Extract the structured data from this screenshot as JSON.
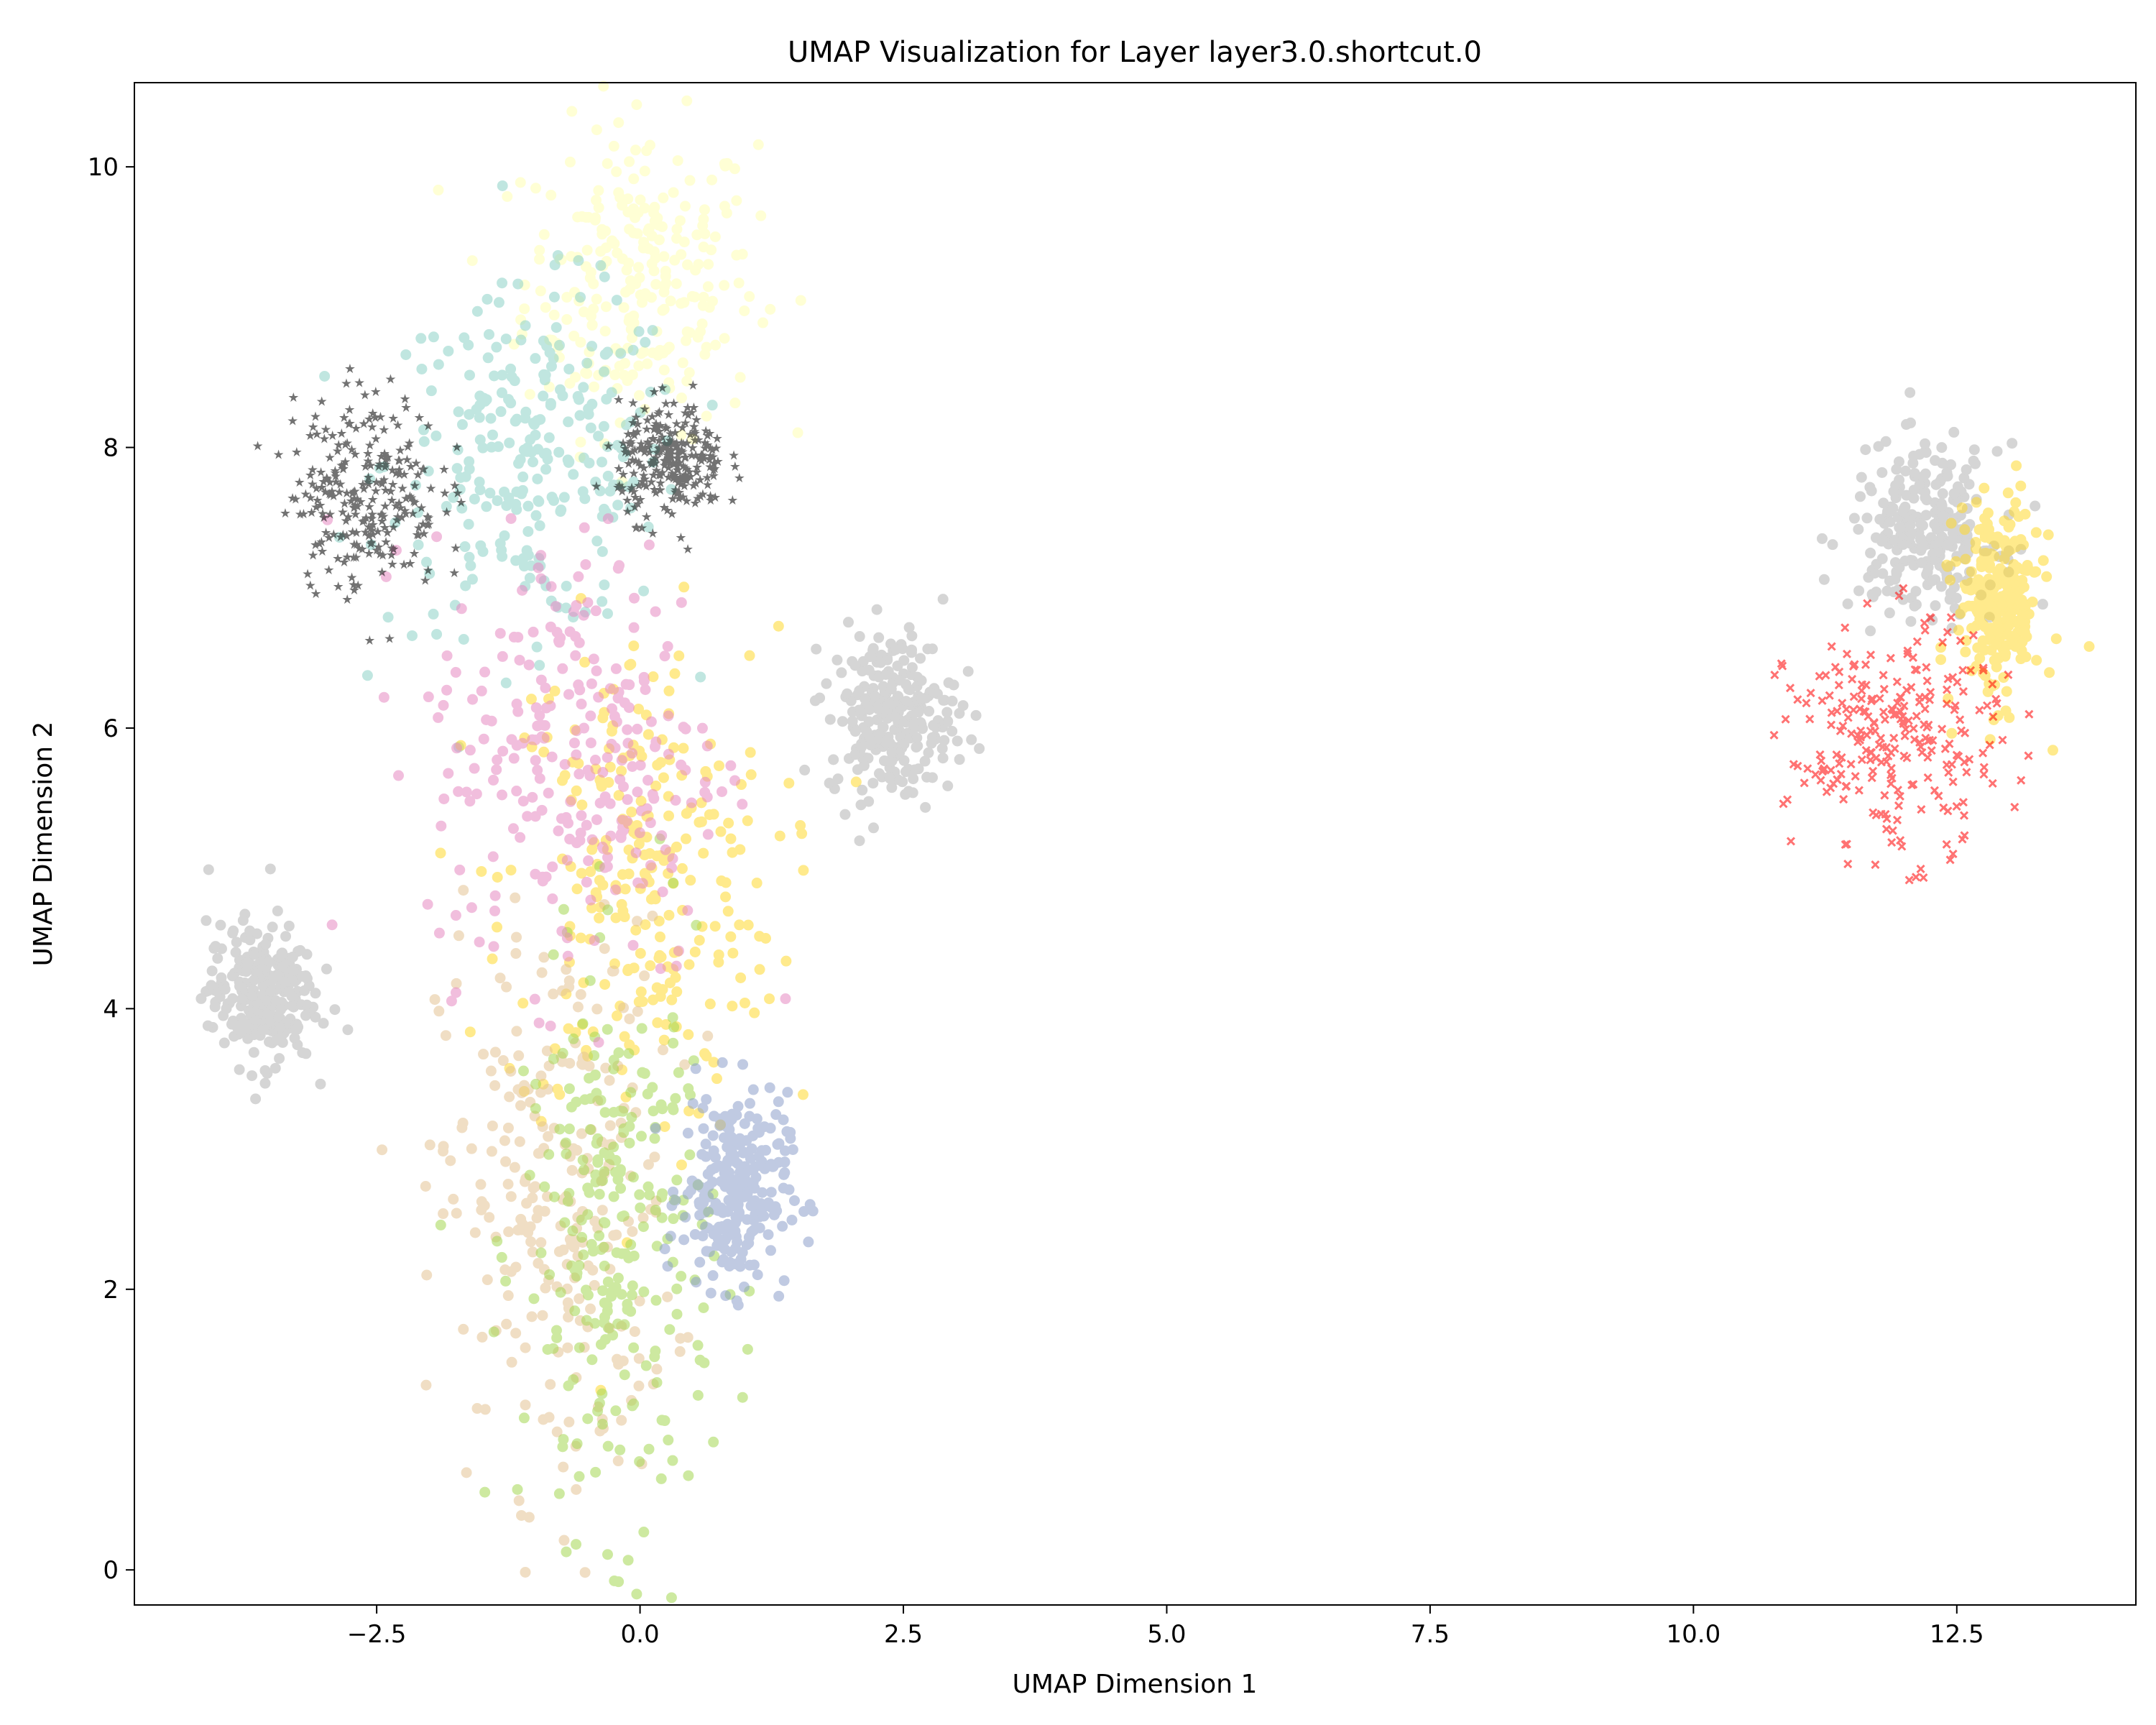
{
  "chart_data": {
    "type": "scatter",
    "title": "UMAP Visualization for Layer layer3.0.shortcut.0",
    "xlabel": "UMAP Dimension 1",
    "ylabel": "UMAP Dimension 2",
    "xlim": [
      -4.8,
      14.2
    ],
    "ylim": [
      -0.25,
      10.6
    ],
    "xticks": [
      -2.5,
      0.0,
      2.5,
      5.0,
      7.5,
      10.0,
      12.5
    ],
    "xtick_labels": [
      "−2.5",
      "0.0",
      "2.5",
      "5.0",
      "7.5",
      "10.0",
      "12.5"
    ],
    "yticks": [
      0,
      2,
      4,
      6,
      8,
      10
    ],
    "ytick_labels": [
      "0",
      "2",
      "4",
      "6",
      "8",
      "10"
    ],
    "grid": false,
    "legend": "none",
    "colors": {
      "teal": "#8dd3c7",
      "pale_yellow": "#ffffb3",
      "yellow": "#ffd92f",
      "tan": "#e5c494",
      "blue": "#8da0cb",
      "pink": "#e78ac3",
      "green": "#a6d854",
      "gray": "#b3b3b3",
      "red": "#ff0000",
      "black": "#000000"
    },
    "series": [
      {
        "color": "#ffffb3",
        "marker": "circle",
        "cluster": {
          "cx": 0.0,
          "cy": 9.2,
          "sx": 0.55,
          "sy": 0.55
        }
      },
      {
        "color": "#8dd3c7",
        "marker": "circle",
        "cluster": {
          "cx": -1.0,
          "cy": 7.9,
          "sx": 0.7,
          "sy": 0.6
        }
      },
      {
        "color": "#ffd92f",
        "marker": "circle",
        "cluster": {
          "cx": 0.0,
          "cy": 4.9,
          "sx": 0.65,
          "sy": 0.9
        }
      },
      {
        "color": "#e5c494",
        "marker": "circle",
        "cluster": {
          "cx": -0.8,
          "cy": 2.6,
          "sx": 0.55,
          "sy": 1.0
        }
      },
      {
        "color": "#a6d854",
        "marker": "circle",
        "cluster": {
          "cx": -0.2,
          "cy": 2.3,
          "sx": 0.45,
          "sy": 1.0
        }
      },
      {
        "color": "#8da0cb",
        "marker": "circle",
        "cluster": {
          "cx": 0.9,
          "cy": 2.7,
          "sx": 0.25,
          "sy": 0.35
        }
      },
      {
        "color": "#e78ac3",
        "marker": "circle",
        "cluster": {
          "cx": -0.6,
          "cy": 5.8,
          "sx": 0.7,
          "sy": 0.8
        }
      },
      {
        "color": "#b3b3b3",
        "marker": "circle",
        "cluster": {
          "cx": 2.4,
          "cy": 6.1,
          "sx": 0.3,
          "sy": 0.3
        }
      },
      {
        "color": "#b3b3b3",
        "marker": "circle",
        "cluster": {
          "cx": -3.6,
          "cy": 4.1,
          "sx": 0.25,
          "sy": 0.25
        }
      },
      {
        "color": "#000000",
        "marker": "star",
        "cluster": {
          "cx": -2.6,
          "cy": 7.7,
          "sx": 0.35,
          "sy": 0.35
        }
      },
      {
        "color": "#000000",
        "marker": "star",
        "cluster": {
          "cx": 0.3,
          "cy": 7.9,
          "sx": 0.25,
          "sy": 0.2
        }
      },
      {
        "color": "#b3b3b3",
        "marker": "circle",
        "cluster": {
          "cx": 12.2,
          "cy": 7.4,
          "sx": 0.35,
          "sy": 0.3
        }
      },
      {
        "color": "#ffd92f",
        "marker": "circle",
        "cluster": {
          "cx": 12.9,
          "cy": 6.9,
          "sx": 0.2,
          "sy": 0.35
        }
      },
      {
        "color": "#ff0000",
        "marker": "x",
        "cluster": {
          "cx": 11.9,
          "cy": 5.9,
          "sx": 0.5,
          "sy": 0.4
        }
      }
    ]
  }
}
